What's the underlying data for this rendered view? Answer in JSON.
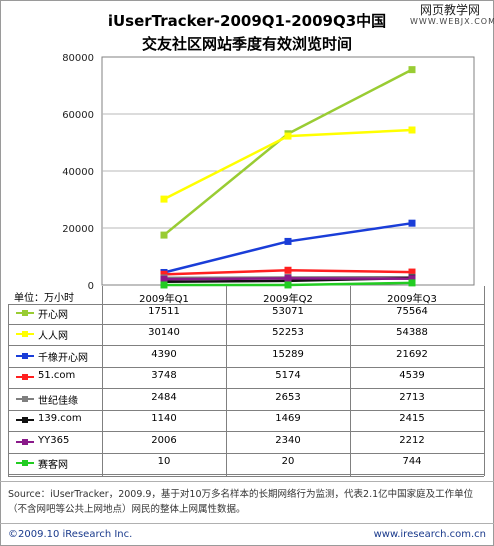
{
  "title_line1": "iUserTracker-2009Q1-2009Q3中国",
  "title_line2": "交友社区网站季度有效浏览时间",
  "watermark": {
    "line1": "网页教学网",
    "line2": "WWW.WEBJX.COM"
  },
  "unit_label": "单位：万小时",
  "source_text": "Source：iUserTracker，2009.9，基于对10万多名样本的长期网络行为监测，代表2.1亿中国家庭及工作单位（不含网吧等公共上网地点）网民的整体上网属性数据。",
  "footer_left": "©2009.10 iResearch Inc.",
  "footer_right": "www.iresearch.com.cn",
  "chart_data": {
    "type": "line",
    "categories": [
      "2009年Q1",
      "2009年Q2",
      "2009年Q3"
    ],
    "ylim": [
      0,
      80000
    ],
    "yticks": [
      0,
      20000,
      40000,
      60000,
      80000
    ],
    "grid": true,
    "legend": "table below chart",
    "series": [
      {
        "name": "开心网",
        "color": "#99cc33",
        "values": [
          17511,
          53071,
          75564
        ]
      },
      {
        "name": "人人网",
        "color": "#ffff00",
        "values": [
          30140,
          52253,
          54388
        ]
      },
      {
        "name": "千橡开心网",
        "color": "#1a3dd8",
        "values": [
          4390,
          15289,
          21692
        ]
      },
      {
        "name": "51.com",
        "color": "#ff2020",
        "values": [
          3748,
          5174,
          4539
        ]
      },
      {
        "name": "世纪佳缘",
        "color": "#7f7f7f",
        "values": [
          2484,
          2653,
          2713
        ]
      },
      {
        "name": "139.com",
        "color": "#111111",
        "values": [
          1140,
          1469,
          2415
        ]
      },
      {
        "name": "YY365",
        "color": "#8a1a8a",
        "values": [
          2006,
          2340,
          2212
        ]
      },
      {
        "name": "赛客网",
        "color": "#22cc22",
        "values": [
          10,
          20,
          744
        ]
      }
    ]
  }
}
